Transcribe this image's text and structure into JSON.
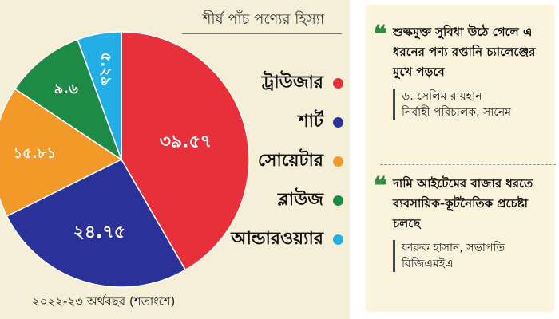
{
  "chart_data": {
    "type": "pie",
    "title": "শীর্ষ পাঁচ পণ্যের হিস্যা",
    "slices": [
      {
        "name": "ট্রাউজার",
        "value": 39.57,
        "label": "৩৯.৫৭",
        "color": "#e8303a"
      },
      {
        "name": "শার্ট",
        "value": 24.75,
        "label": "২৪.৭৫",
        "color": "#2a3199"
      },
      {
        "name": "সোয়েটার",
        "value": 15.81,
        "label": "১৫.৮১",
        "color": "#f2992a"
      },
      {
        "name": "ব্লাউজ",
        "value": 9.6,
        "label": "৯.৬",
        "color": "#1d8a46"
      },
      {
        "name": "আন্ডারওয়্যার",
        "value": 5.29,
        "label": "৫.২৯",
        "color": "#23aee6"
      }
    ],
    "footnote": "২০২২-২৩ অর্থবছর (শতাংশে)"
  },
  "quotes": [
    {
      "text": "শুল্কমুক্ত সুবিধা উঠে গেলে এ ধরনের পণ্য রপ্তানি চ্যালেঞ্জের মুখে পড়বে",
      "name": "ড. সেলিম রায়হান",
      "role": "নির্বাহী পরিচালক, সানেম"
    },
    {
      "text": "দামি আইটেমের বাজার ধরতে ব্যবসায়িক-কূটনৈতিক প্রচেষ্টা চলছে",
      "name": "ফারুক হাসান, সভাপতি",
      "role": "বিজিএমইএ"
    }
  ],
  "quote_mark": "❝"
}
